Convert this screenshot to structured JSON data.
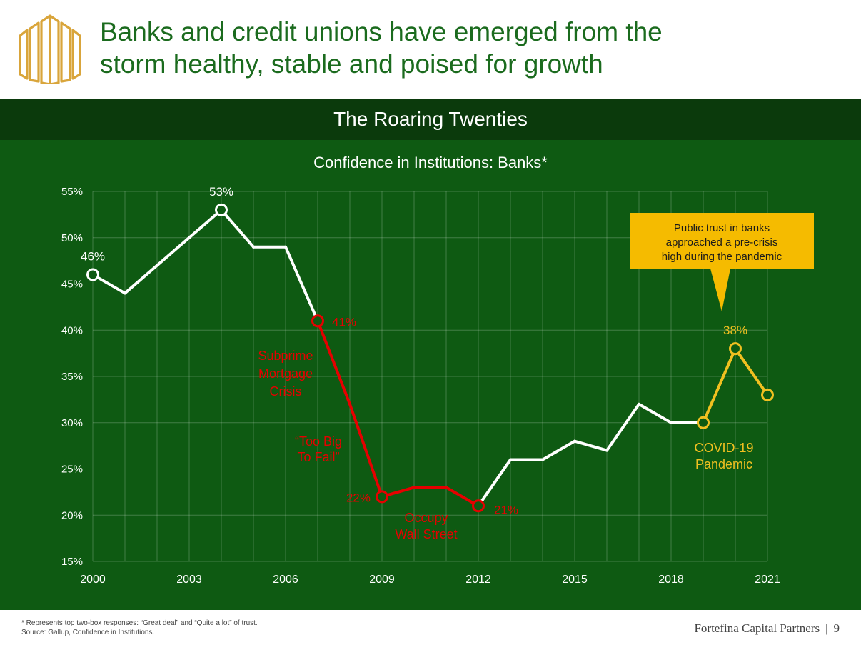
{
  "header": {
    "headline_line1": "Banks and credit unions have emerged from the",
    "headline_line2": "storm healthy, stable and poised for growth"
  },
  "band": {
    "title": "The Roaring Twenties"
  },
  "footer": {
    "note": "* Represents top two-box responses: “Great deal” and “Quite a lot” of trust.",
    "source": "Source: Gallup, Confidence in Institutions.",
    "company": "Fortefina Capital Partners",
    "separator": "|",
    "page_number": "9"
  },
  "colors": {
    "background": "#0e5a12",
    "band": "#0b3a0c",
    "headline": "#1b6b1e",
    "normal_line": "#ffffff",
    "crisis_line": "#e60000",
    "pandemic_line": "#f0c020",
    "callout": "#f5bb00",
    "logo": "#d9a53b"
  },
  "chart_data": {
    "type": "line",
    "title": "Confidence in Institutions: Banks*",
    "xlabel": "",
    "ylabel": "",
    "xlim": [
      2000,
      2021
    ],
    "ylim": [
      15,
      55
    ],
    "x_ticks": [
      "2000",
      "2003",
      "2006",
      "2009",
      "2012",
      "2015",
      "2018",
      "2021"
    ],
    "y_ticks": [
      "15%",
      "20%",
      "25%",
      "30%",
      "35%",
      "40%",
      "45%",
      "50%",
      "55%"
    ],
    "grid": true,
    "legend": "none",
    "series": [
      {
        "x": [
          2000,
          2001,
          2002,
          2003,
          2004,
          2005,
          2006,
          2007,
          2008,
          2009,
          2010,
          2011,
          2012,
          2013,
          2014,
          2015,
          2016,
          2017,
          2018,
          2019,
          2020,
          2021
        ],
        "values": [
          46,
          44,
          47,
          50,
          53,
          49,
          49,
          41,
          32,
          22,
          23,
          23,
          21,
          26,
          26,
          28,
          27,
          32,
          30,
          30,
          38,
          33
        ]
      }
    ],
    "data_labels": [
      {
        "x": 2000,
        "y": 46,
        "text": "46%"
      },
      {
        "x": 2004,
        "y": 53,
        "text": "53%"
      },
      {
        "x": 2007,
        "y": 41,
        "text": "41%"
      },
      {
        "x": 2009,
        "y": 22,
        "text": "22%"
      },
      {
        "x": 2012,
        "y": 21,
        "text": "21%"
      },
      {
        "x": 2020,
        "y": 38,
        "text": "38%"
      }
    ],
    "annotations": [
      {
        "lines": [
          "Subprime",
          "Mortgage",
          "Crisis"
        ]
      },
      {
        "lines": [
          "“Too Big",
          "To Fail”"
        ]
      },
      {
        "lines": [
          "Occupy",
          "Wall Street"
        ]
      },
      {
        "lines": [
          "COVID-19",
          "Pandemic"
        ]
      }
    ],
    "callout": {
      "lines": [
        "Public trust in banks",
        "approached a pre-crisis",
        "high during the pandemic"
      ]
    }
  }
}
